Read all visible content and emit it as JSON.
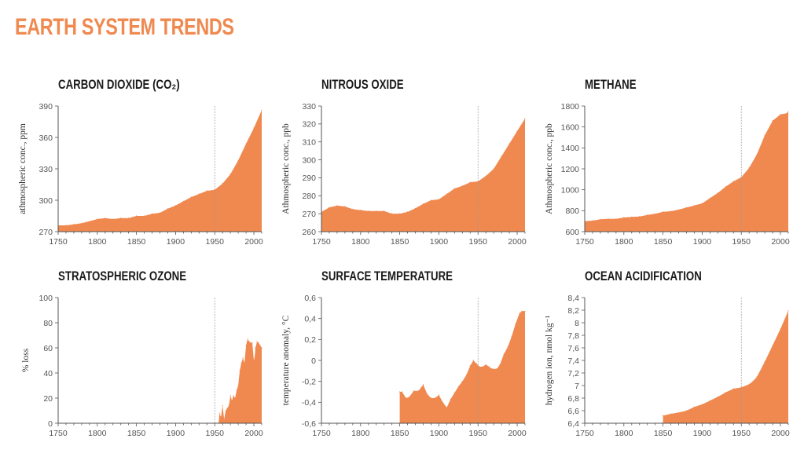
{
  "page": {
    "title": "EARTH SYSTEM TRENDS",
    "accent_color": "#f0894f",
    "fill_color": "#f0894f"
  },
  "chart_data": [
    {
      "id": "co2",
      "type": "area",
      "title": "CARBON DIOXIDE (CO₂)",
      "ylabel": "athmospheric conc., ppm",
      "xlabel": "",
      "xlim": [
        1750,
        2010
      ],
      "ylim": [
        270,
        390
      ],
      "xticks": [
        "1750",
        "1800",
        "1850",
        "1900",
        "1950",
        "2000"
      ],
      "yticks": [
        "270",
        "300",
        "330",
        "360",
        "390"
      ],
      "reference_line_x": 1950,
      "x": [
        1750,
        1760,
        1770,
        1780,
        1790,
        1800,
        1810,
        1820,
        1830,
        1840,
        1850,
        1860,
        1870,
        1880,
        1890,
        1900,
        1910,
        1920,
        1930,
        1940,
        1950,
        1960,
        1970,
        1980,
        1990,
        2000,
        2010
      ],
      "y": [
        276,
        276,
        277,
        278,
        280,
        282,
        283,
        282,
        283,
        283,
        285,
        285,
        287,
        288,
        292,
        295,
        299,
        303,
        306,
        309,
        310,
        316,
        325,
        338,
        354,
        369,
        386
      ]
    },
    {
      "id": "n2o",
      "type": "area",
      "title": "NITROUS OXIDE",
      "ylabel": "Athmospheric conc., ppb",
      "xlabel": "",
      "xlim": [
        1750,
        2010
      ],
      "ylim": [
        260,
        330
      ],
      "xticks": [
        "1750",
        "1800",
        "1850",
        "1900",
        "1950",
        "2000"
      ],
      "yticks": [
        "260",
        "270",
        "280",
        "290",
        "300",
        "310",
        "320",
        "330"
      ],
      "reference_line_x": 1950,
      "x": [
        1750,
        1760,
        1770,
        1780,
        1790,
        1800,
        1810,
        1820,
        1830,
        1840,
        1850,
        1860,
        1870,
        1880,
        1890,
        1900,
        1910,
        1920,
        1930,
        1940,
        1950,
        1960,
        1970,
        1980,
        1990,
        2000,
        2010
      ],
      "y": [
        271,
        273.5,
        274.5,
        274,
        272.5,
        272,
        271.5,
        271.5,
        271.5,
        270,
        270,
        271,
        273,
        275.5,
        277.5,
        278,
        281,
        284,
        285.5,
        287.5,
        288,
        291,
        295,
        302,
        309,
        316,
        323
      ]
    },
    {
      "id": "ch4",
      "type": "area",
      "title": "METHANE",
      "ylabel": "Athmospheric conc., ppb",
      "xlabel": "",
      "xlim": [
        1750,
        2010
      ],
      "ylim": [
        600,
        1800
      ],
      "xticks": [
        "1750",
        "1800",
        "1850",
        "1900",
        "1950",
        "2000"
      ],
      "yticks": [
        "600",
        "800",
        "1000",
        "1200",
        "1400",
        "1600",
        "1800"
      ],
      "reference_line_x": 1950,
      "x": [
        1750,
        1760,
        1770,
        1780,
        1790,
        1800,
        1810,
        1820,
        1830,
        1840,
        1850,
        1860,
        1870,
        1880,
        1890,
        1900,
        1910,
        1920,
        1930,
        1940,
        1950,
        1960,
        1970,
        1980,
        1990,
        2000,
        2008,
        2010
      ],
      "y": [
        700,
        705,
        718,
        722,
        722,
        735,
        740,
        745,
        760,
        770,
        790,
        795,
        810,
        830,
        850,
        870,
        920,
        970,
        1030,
        1080,
        1120,
        1210,
        1340,
        1520,
        1660,
        1720,
        1730,
        1745
      ]
    },
    {
      "id": "ozone",
      "type": "area",
      "title": "STRATOSPHERIC OZONE",
      "ylabel": "% loss",
      "xlabel": "",
      "xlim": [
        1750,
        2010
      ],
      "ylim": [
        0,
        100
      ],
      "xticks": [
        "1750",
        "1800",
        "1850",
        "1900",
        "1950",
        "2000"
      ],
      "yticks": [
        "0",
        "20",
        "40",
        "60",
        "80",
        "100"
      ],
      "reference_line_x": 1950,
      "x": [
        1955,
        1956,
        1958,
        1960,
        1962,
        1964,
        1966,
        1968,
        1970,
        1972,
        1974,
        1976,
        1978,
        1980,
        1982,
        1984,
        1986,
        1988,
        1990,
        1992,
        1994,
        1996,
        1998,
        2000,
        2001,
        2002,
        2004,
        2006,
        2008,
        2010
      ],
      "y": [
        0,
        8,
        5,
        14,
        3,
        10,
        12,
        14,
        22,
        18,
        22,
        20,
        26,
        30,
        42,
        48,
        52,
        48,
        62,
        67,
        65,
        64,
        64,
        50,
        52,
        60,
        65,
        64,
        62,
        60
      ]
    },
    {
      "id": "temperature",
      "type": "area",
      "title": "SURFACE TEMPERATURE",
      "ylabel": "temperature anomaly, °C",
      "xlabel": "",
      "xlim": [
        1750,
        2010
      ],
      "ylim": [
        -0.6,
        0.6
      ],
      "xticks": [
        "1750",
        "1800",
        "1850",
        "1900",
        "1950",
        "2000"
      ],
      "yticks": [
        "-0,6",
        "-0,4",
        "-0,2",
        "0",
        "0,2",
        "0,4",
        "0,6"
      ],
      "reference_line_x": 1950,
      "x": [
        1850,
        1853,
        1858,
        1862,
        1868,
        1874,
        1880,
        1885,
        1890,
        1895,
        1900,
        1905,
        1910,
        1915,
        1920,
        1925,
        1930,
        1935,
        1940,
        1944,
        1948,
        1952,
        1956,
        1960,
        1964,
        1968,
        1974,
        1978,
        1983,
        1988,
        1993,
        1998,
        2003,
        2006,
        2010
      ],
      "y": [
        -0.3,
        -0.3,
        -0.36,
        -0.35,
        -0.29,
        -0.29,
        -0.23,
        -0.32,
        -0.36,
        -0.36,
        -0.33,
        -0.4,
        -0.45,
        -0.37,
        -0.31,
        -0.25,
        -0.2,
        -0.14,
        -0.05,
        0.0,
        -0.03,
        -0.06,
        -0.06,
        -0.04,
        -0.06,
        -0.08,
        -0.08,
        -0.04,
        0.06,
        0.13,
        0.23,
        0.35,
        0.45,
        0.47,
        0.47
      ]
    },
    {
      "id": "acidification",
      "type": "area",
      "title": "OCEAN ACIDIFICATION",
      "ylabel": "hydrogen ion, nmol kg⁻¹",
      "xlabel": "",
      "xlim": [
        1750,
        2010
      ],
      "ylim": [
        6.4,
        8.4
      ],
      "xticks": [
        "1750",
        "1800",
        "1850",
        "1900",
        "1950",
        "2000"
      ],
      "yticks": [
        "6,4",
        "6,6",
        "6,8",
        "7",
        "7,2",
        "7,4",
        "7,6",
        "7,8",
        "8",
        "8,2",
        "8,4"
      ],
      "reference_line_x": 1950,
      "x": [
        1850,
        1860,
        1870,
        1880,
        1890,
        1900,
        1910,
        1920,
        1930,
        1940,
        1950,
        1960,
        1965,
        1970,
        1980,
        1990,
        2000,
        2010
      ],
      "y": [
        6.52,
        6.55,
        6.57,
        6.6,
        6.66,
        6.7,
        6.76,
        6.82,
        6.89,
        6.95,
        6.97,
        7.02,
        7.07,
        7.14,
        7.38,
        7.64,
        7.9,
        8.19
      ]
    }
  ]
}
